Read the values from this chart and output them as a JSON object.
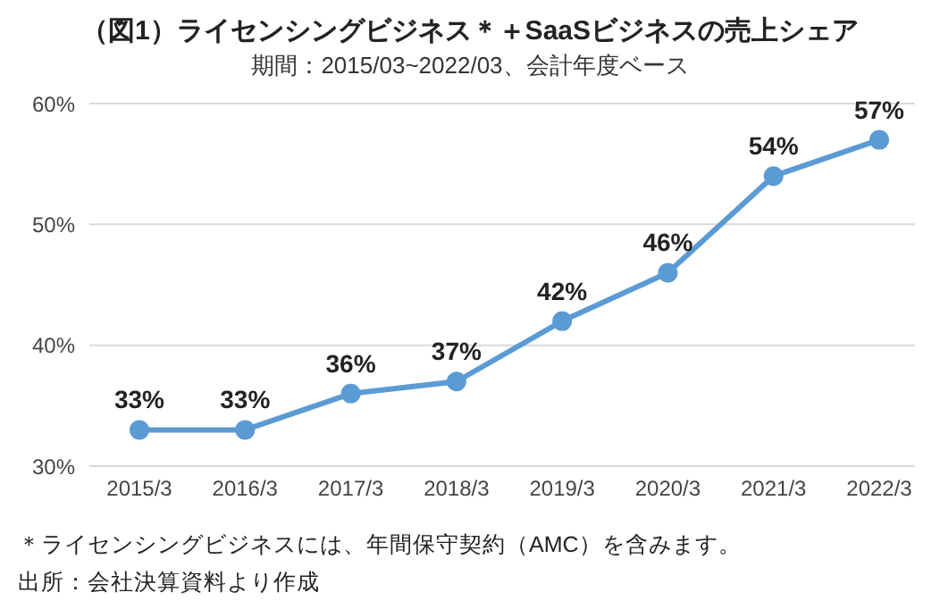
{
  "chart_data": {
    "type": "line",
    "title": "（図1）ライセンシングビジネス＊＋SaaSビジネスの売上シェア",
    "subtitle": "期間：2015/03~2022/03、会計年度ベース",
    "categories": [
      "2015/3",
      "2016/3",
      "2017/3",
      "2018/3",
      "2019/3",
      "2020/3",
      "2021/3",
      "2022/3"
    ],
    "values": [
      33,
      33,
      36,
      37,
      42,
      46,
      54,
      57
    ],
    "value_labels": [
      "33%",
      "33%",
      "36%",
      "37%",
      "42%",
      "46%",
      "54%",
      "57%"
    ],
    "color": "#5b9bd5",
    "marker": "circle",
    "line_style": "solid",
    "grid": "y",
    "ylim": [
      30,
      60
    ],
    "yticks": [
      {
        "value": 30,
        "label": "30%"
      },
      {
        "value": 40,
        "label": "40%"
      },
      {
        "value": 50,
        "label": "50%"
      },
      {
        "value": 60,
        "label": "60%"
      }
    ],
    "annotations": [
      "＊ライセンシングビジネスには、年間保守契約（AMC）を含みます。",
      "出所：会社決算資料より作成"
    ]
  }
}
